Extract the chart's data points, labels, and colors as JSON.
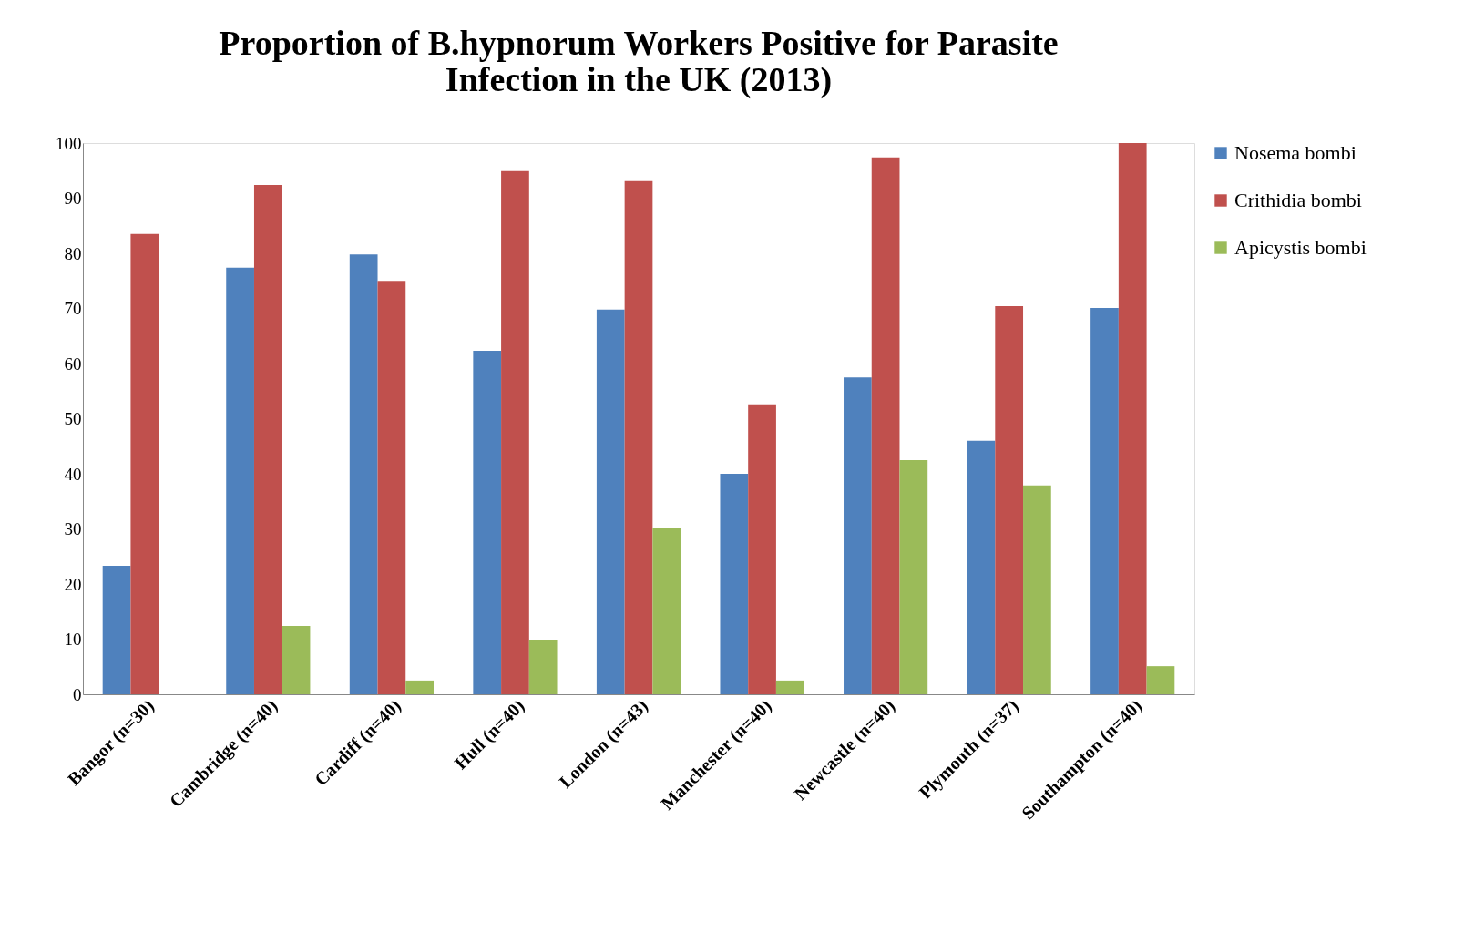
{
  "chart_data": {
    "type": "bar",
    "title": [
      "Proportion of B.hypnorum Workers Positive for Parasite",
      "Infection in the UK (2013)"
    ],
    "categories": [
      "Bangor (n=30)",
      "Cambridge (n=40)",
      "Cardiff (n=40)",
      "Hull (n=40)",
      "London (n=43)",
      "Manchester (n=40)",
      "Newcastle (n=40)",
      "Plymouth (n=37)",
      "Southampton (n=40)"
    ],
    "series": [
      {
        "name": "Nosema bombi",
        "color": "#4f81bd",
        "values": [
          23.3,
          77.4,
          79.8,
          62.3,
          69.8,
          40.0,
          57.5,
          46.0,
          70.1
        ]
      },
      {
        "name": "Crithidia bombi",
        "color": "#c0504d",
        "values": [
          83.5,
          92.4,
          75.0,
          94.9,
          93.1,
          52.6,
          97.4,
          70.4,
          100
        ]
      },
      {
        "name": "Apicystis bombi",
        "color": "#9bbb59",
        "values": [
          null,
          12.4,
          2.5,
          9.9,
          30.1,
          2.5,
          42.5,
          37.9,
          5.1
        ]
      }
    ],
    "ylim": [
      0,
      100
    ],
    "yticks": [
      0,
      10,
      20,
      30,
      40,
      50,
      60,
      70,
      80,
      90,
      100
    ],
    "grid": false,
    "legend": "right"
  }
}
